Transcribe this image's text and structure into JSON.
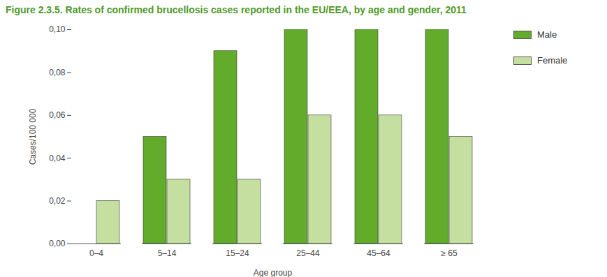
{
  "chart_data": {
    "type": "bar",
    "title": "Figure 2.3.5. Rates of confirmed brucellosis cases reported in the EU/EEA, by age and gender, 2011",
    "x_label": "Age group",
    "y_label": "Cases/100 000",
    "categories": [
      "0–4",
      "5–14",
      "15–24",
      "25–44",
      "45–64",
      "≥ 65"
    ],
    "series": [
      {
        "name": "Male",
        "color": "#62ab2b",
        "values": [
          0,
          0.05,
          0.09,
          0.1,
          0.1,
          0.1
        ]
      },
      {
        "name": "Female",
        "color": "#c4dfa0",
        "values": [
          0.02,
          0.03,
          0.03,
          0.06,
          0.06,
          0.05
        ]
      }
    ],
    "ylim": [
      0,
      0.1
    ],
    "yticks": [
      {
        "value": 0,
        "label": "0,00"
      },
      {
        "value": 0.02,
        "label": "0,02"
      },
      {
        "value": 0.04,
        "label": "0,04"
      },
      {
        "value": 0.06,
        "label": "0,06"
      },
      {
        "value": 0.08,
        "label": "0,08"
      },
      {
        "value": 0.1,
        "label": "0,10"
      }
    ],
    "grid": false,
    "legend": "top-right"
  }
}
